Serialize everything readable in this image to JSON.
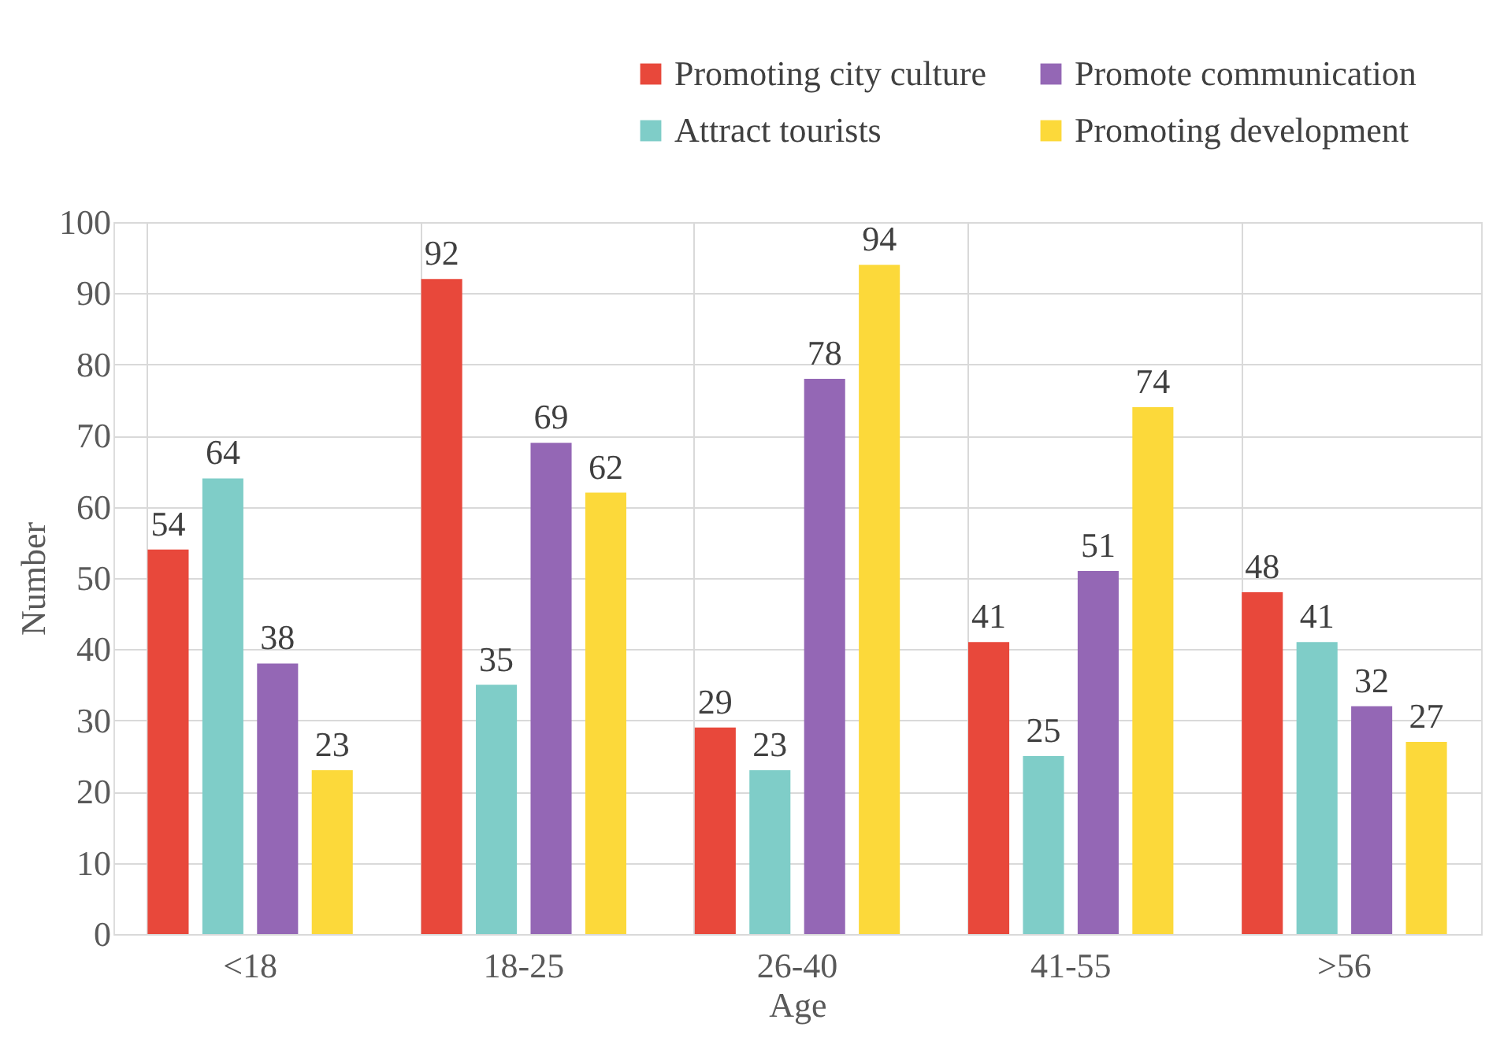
{
  "chart_data": {
    "type": "bar",
    "xlabel": "Age",
    "ylabel": "Number",
    "categories": [
      "<18",
      "18-25",
      "26-40",
      "41-55",
      ">56"
    ],
    "series": [
      {
        "name": "Promoting city culture",
        "color": "#e8483b",
        "values": [
          54,
          92,
          29,
          41,
          48
        ]
      },
      {
        "name": "Attract tourists",
        "color": "#7fcdc8",
        "values": [
          64,
          35,
          23,
          25,
          41
        ]
      },
      {
        "name": "Promote communication",
        "color": "#9467b5",
        "values": [
          38,
          69,
          78,
          51,
          32
        ]
      },
      {
        "name": "Promoting development",
        "color": "#fcd93a",
        "values": [
          23,
          62,
          94,
          74,
          27
        ]
      }
    ],
    "ylim": [
      0,
      100
    ],
    "yticks": [
      0,
      10,
      20,
      30,
      40,
      50,
      60,
      70,
      80,
      90,
      100
    ],
    "grid": true,
    "legend": "top right",
    "data_labels": true
  }
}
